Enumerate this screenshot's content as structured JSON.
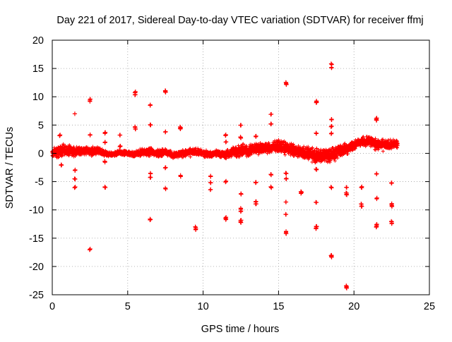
{
  "chart_data": {
    "type": "scatter",
    "title": "Day 221 of 2017, Sidereal Day-to-day VTEC variation (SDTVAR) for receiver ffmj",
    "xlabel": "GPS time / hours",
    "ylabel": "SDTVAR / TECUs",
    "xlim": [
      0,
      25
    ],
    "ylim": [
      -25,
      20
    ],
    "xticks": [
      0,
      5,
      10,
      15,
      20,
      25
    ],
    "yticks": [
      -25,
      -20,
      -15,
      -10,
      -5,
      0,
      5,
      10,
      15,
      20
    ],
    "xtick_labels": [
      "0",
      "5",
      "10",
      "15",
      "20",
      "25"
    ],
    "ytick_labels": [
      "-25",
      "-20",
      "-15",
      "-10",
      "-5",
      "0",
      "5",
      "10",
      "15",
      "20"
    ],
    "grid": true,
    "marker": "+",
    "series": [
      {
        "name": "SDTVAR",
        "color": "#ff0000",
        "band": {
          "x": [
            0.0,
            0.5,
            1.0,
            1.5,
            2.0,
            2.5,
            3.0,
            3.5,
            4.0,
            4.5,
            5.0,
            5.5,
            6.0,
            6.5,
            7.0,
            7.5,
            8.0,
            8.5,
            9.0,
            9.5,
            10.0,
            10.5,
            11.0,
            11.5,
            12.0,
            12.5,
            13.0,
            13.5,
            14.0,
            14.5,
            15.0,
            15.5,
            16.0,
            16.5,
            17.0,
            17.5,
            18.0,
            18.5,
            19.0,
            19.5,
            20.0,
            20.5,
            21.0,
            21.5,
            22.0,
            22.5,
            22.9
          ],
          "center": [
            0.0,
            0.3,
            0.5,
            0.3,
            0.5,
            0.3,
            0.4,
            0.0,
            -0.2,
            0.1,
            0.0,
            -0.2,
            0.2,
            0.3,
            0.0,
            0.2,
            -0.3,
            -0.1,
            0.1,
            0.3,
            0.0,
            -0.2,
            0.1,
            -0.3,
            0.3,
            0.5,
            0.5,
            0.8,
            1.0,
            0.9,
            1.3,
            1.0,
            0.5,
            0.2,
            0.0,
            -0.5,
            -0.3,
            -0.2,
            0.3,
            0.8,
            1.5,
            2.0,
            2.3,
            1.5,
            1.5,
            1.5,
            1.8
          ],
          "spread": [
            1.2,
            1.4,
            1.3,
            1.0,
            0.9,
            1.0,
            0.9,
            0.7,
            0.5,
            0.6,
            0.5,
            0.8,
            0.9,
            0.9,
            0.8,
            0.8,
            0.7,
            0.8,
            0.9,
            0.8,
            0.8,
            0.7,
            0.7,
            0.9,
            1.2,
            1.4,
            1.4,
            1.3,
            1.2,
            1.2,
            1.4,
            1.4,
            1.3,
            1.5,
            1.6,
            1.8,
            2.0,
            1.8,
            1.6,
            1.3,
            1.0,
            1.0,
            1.3,
            1.3,
            1.2,
            1.1,
            1.0
          ]
        },
        "outliers": [
          {
            "x": 0.5,
            "y": 3.2
          },
          {
            "x": 0.6,
            "y": -2.0
          },
          {
            "x": 1.5,
            "y": 7.0
          },
          {
            "x": 1.5,
            "y": -3.0
          },
          {
            "x": 1.5,
            "y": -4.5
          },
          {
            "x": 1.5,
            "y": -6.0
          },
          {
            "x": 2.5,
            "y": 9.5
          },
          {
            "x": 2.5,
            "y": 9.2
          },
          {
            "x": 2.5,
            "y": 3.2
          },
          {
            "x": 2.5,
            "y": -17.0
          },
          {
            "x": 3.5,
            "y": 3.6
          },
          {
            "x": 3.5,
            "y": 2.0
          },
          {
            "x": 3.5,
            "y": -1.5
          },
          {
            "x": 3.5,
            "y": -6.0
          },
          {
            "x": 4.5,
            "y": 3.2
          },
          {
            "x": 4.5,
            "y": 1.2
          },
          {
            "x": 5.5,
            "y": 10.8
          },
          {
            "x": 5.5,
            "y": 10.4
          },
          {
            "x": 5.5,
            "y": 4.6
          },
          {
            "x": 5.5,
            "y": 4.3
          },
          {
            "x": 6.5,
            "y": 8.6
          },
          {
            "x": 6.5,
            "y": 5.0
          },
          {
            "x": 6.5,
            "y": -3.5
          },
          {
            "x": 6.5,
            "y": -4.2
          },
          {
            "x": 6.5,
            "y": -11.7
          },
          {
            "x": 7.5,
            "y": 11.1
          },
          {
            "x": 7.5,
            "y": 10.8
          },
          {
            "x": 7.5,
            "y": 3.8
          },
          {
            "x": 7.5,
            "y": -2.5
          },
          {
            "x": 7.5,
            "y": -6.2
          },
          {
            "x": 8.5,
            "y": 4.6
          },
          {
            "x": 8.5,
            "y": 4.4
          },
          {
            "x": 8.5,
            "y": -4.0
          },
          {
            "x": 9.5,
            "y": -13.1
          },
          {
            "x": 9.5,
            "y": -13.4
          },
          {
            "x": 10.5,
            "y": -4.0
          },
          {
            "x": 10.5,
            "y": -5.2
          },
          {
            "x": 10.5,
            "y": -6.4
          },
          {
            "x": 11.5,
            "y": 3.2
          },
          {
            "x": 11.5,
            "y": 2.0
          },
          {
            "x": 11.5,
            "y": -5.0
          },
          {
            "x": 11.5,
            "y": -11.4
          },
          {
            "x": 11.5,
            "y": -11.7
          },
          {
            "x": 12.5,
            "y": 5.0
          },
          {
            "x": 12.5,
            "y": 2.8
          },
          {
            "x": 12.5,
            "y": -7.2
          },
          {
            "x": 12.5,
            "y": -9.8
          },
          {
            "x": 12.5,
            "y": -10.3
          },
          {
            "x": 12.5,
            "y": -11.8
          },
          {
            "x": 12.5,
            "y": -12.2
          },
          {
            "x": 13.5,
            "y": 3.0
          },
          {
            "x": 13.5,
            "y": -5.2
          },
          {
            "x": 13.5,
            "y": -8.5
          },
          {
            "x": 13.5,
            "y": -8.9
          },
          {
            "x": 14.5,
            "y": 6.9
          },
          {
            "x": 14.5,
            "y": 5.2
          },
          {
            "x": 14.5,
            "y": -3.8
          },
          {
            "x": 14.5,
            "y": -6.0
          },
          {
            "x": 15.5,
            "y": 12.5
          },
          {
            "x": 15.5,
            "y": 12.2
          },
          {
            "x": 15.5,
            "y": -3.5
          },
          {
            "x": 15.5,
            "y": -4.5
          },
          {
            "x": 15.5,
            "y": -8.6
          },
          {
            "x": 15.5,
            "y": -10.8
          },
          {
            "x": 15.5,
            "y": -13.9
          },
          {
            "x": 15.5,
            "y": -14.2
          },
          {
            "x": 16.5,
            "y": -6.8
          },
          {
            "x": 16.5,
            "y": -7.0
          },
          {
            "x": 17.5,
            "y": 9.2
          },
          {
            "x": 17.5,
            "y": 9.0
          },
          {
            "x": 17.5,
            "y": 3.6
          },
          {
            "x": 17.5,
            "y": -2.8
          },
          {
            "x": 17.5,
            "y": -8.7
          },
          {
            "x": 17.5,
            "y": -13.0
          },
          {
            "x": 17.5,
            "y": -13.3
          },
          {
            "x": 18.5,
            "y": 15.8
          },
          {
            "x": 18.5,
            "y": 15.2
          },
          {
            "x": 18.5,
            "y": 6.0
          },
          {
            "x": 18.5,
            "y": 4.8
          },
          {
            "x": 18.5,
            "y": 3.5
          },
          {
            "x": 18.5,
            "y": -6.0
          },
          {
            "x": 18.5,
            "y": -18.0
          },
          {
            "x": 18.5,
            "y": -18.3
          },
          {
            "x": 19.5,
            "y": -6.0
          },
          {
            "x": 19.5,
            "y": -7.0
          },
          {
            "x": 19.5,
            "y": -7.3
          },
          {
            "x": 19.5,
            "y": -23.5
          },
          {
            "x": 19.5,
            "y": -23.8
          },
          {
            "x": 20.5,
            "y": -6.0
          },
          {
            "x": 20.5,
            "y": -9.0
          },
          {
            "x": 20.5,
            "y": -9.3
          },
          {
            "x": 21.5,
            "y": 6.2
          },
          {
            "x": 21.5,
            "y": 5.9
          },
          {
            "x": 21.5,
            "y": -3.6
          },
          {
            "x": 21.5,
            "y": -8.0
          },
          {
            "x": 21.5,
            "y": -12.6
          },
          {
            "x": 21.5,
            "y": -13.0
          },
          {
            "x": 22.5,
            "y": -5.3
          },
          {
            "x": 22.5,
            "y": -9.0
          },
          {
            "x": 22.5,
            "y": -9.3
          },
          {
            "x": 22.5,
            "y": -12.1
          },
          {
            "x": 22.5,
            "y": -12.4
          }
        ]
      }
    ]
  }
}
